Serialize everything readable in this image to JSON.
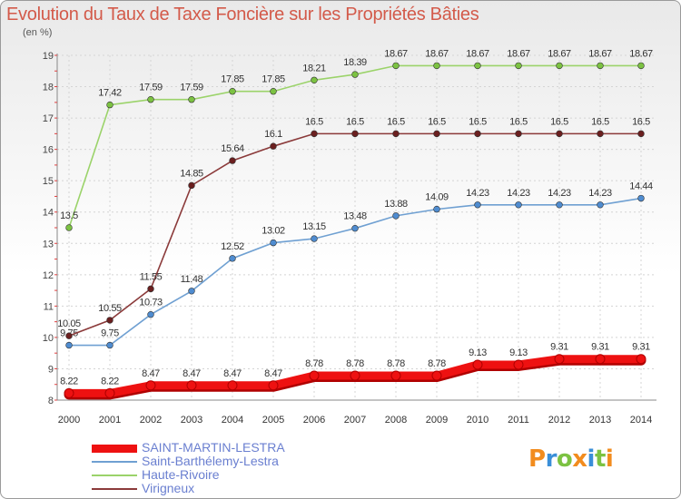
{
  "header": {
    "title": "Evolution du Taux de Taxe Foncière sur les Propriétés Bâties",
    "subtitle": "(en %)"
  },
  "logo": {
    "letters": [
      "P",
      "r",
      "o",
      "x",
      "i",
      "t",
      "i"
    ],
    "colors": [
      "#f28c1e",
      "#3a8fd8",
      "#7cc242",
      "#f28c1e",
      "#3a8fd8",
      "#7cc242",
      "#f28c1e"
    ]
  },
  "chart_data": {
    "type": "line",
    "title": "Evolution du Taux de Taxe Foncière sur les Propriétés Bâties",
    "ylabel": "(en %)",
    "xlabel": "",
    "ylim": [
      8,
      19
    ],
    "yticks": [
      8,
      9,
      10,
      11,
      12,
      13,
      14,
      15,
      16,
      17,
      18,
      19
    ],
    "grid": true,
    "legend_position": "bottom-left",
    "x": [
      "2000",
      "2001",
      "2002",
      "2003",
      "2004",
      "2005",
      "2006",
      "2007",
      "2008",
      "2009",
      "2010",
      "2011",
      "2012",
      "2013",
      "2014"
    ],
    "series": [
      {
        "name": "SAINT-MARTIN-LESTRA",
        "color": "#ee1111",
        "marker": "#ee1111",
        "thick": true,
        "values": [
          8.22,
          8.22,
          8.47,
          8.47,
          8.47,
          8.47,
          8.78,
          8.78,
          8.78,
          8.78,
          9.13,
          9.13,
          9.31,
          9.31,
          9.31
        ],
        "labels": [
          "8.22",
          "8.22",
          "8.47",
          "8.47",
          "8.47",
          "8.47",
          "8.78",
          "8.78",
          "8.78",
          "8.78",
          "9.13",
          "9.13",
          "9.31",
          "9.31",
          "9.31"
        ]
      },
      {
        "name": "Saint-Barthélemy-Lestra",
        "color": "#6fa0d2",
        "marker": "#4f8cd0",
        "thick": false,
        "values": [
          9.75,
          9.75,
          10.73,
          11.48,
          12.52,
          13.02,
          13.15,
          13.48,
          13.88,
          14.09,
          14.23,
          14.23,
          14.23,
          14.23,
          14.44
        ],
        "labels": [
          "9.75",
          "9.75",
          "10.73",
          "11.48",
          "12.52",
          "13.02",
          "13.15",
          "13.48",
          "13.88",
          "14.09",
          "14.23",
          "14.23",
          "14.23",
          "14.23",
          "14.44"
        ]
      },
      {
        "name": "Haute-Rivoire",
        "color": "#9bd36a",
        "marker": "#7cc242",
        "thick": false,
        "values": [
          13.5,
          17.42,
          17.59,
          17.59,
          17.85,
          17.85,
          18.21,
          18.39,
          18.67,
          18.67,
          18.67,
          18.67,
          18.67,
          18.67,
          18.67
        ],
        "labels": [
          "13.5",
          "17.42",
          "17.59",
          "17.59",
          "17.85",
          "17.85",
          "18.21",
          "18.39",
          "18.67",
          "18.67",
          "18.67",
          "18.67",
          "18.67",
          "18.67",
          "18.67"
        ]
      },
      {
        "name": "Virigneux",
        "color": "#8b3a3a",
        "marker": "#6b1f1f",
        "thick": false,
        "values": [
          10.05,
          10.55,
          11.55,
          14.85,
          15.64,
          16.1,
          16.5,
          16.5,
          16.5,
          16.5,
          16.5,
          16.5,
          16.5,
          16.5,
          16.5
        ],
        "labels": [
          "10.05",
          "10.55",
          "11.55",
          "14.85",
          "15.64",
          "16.1",
          "16.5",
          "16.5",
          "16.5",
          "16.5",
          "16.5",
          "16.5",
          "16.5",
          "16.5",
          "16.5"
        ]
      }
    ]
  }
}
